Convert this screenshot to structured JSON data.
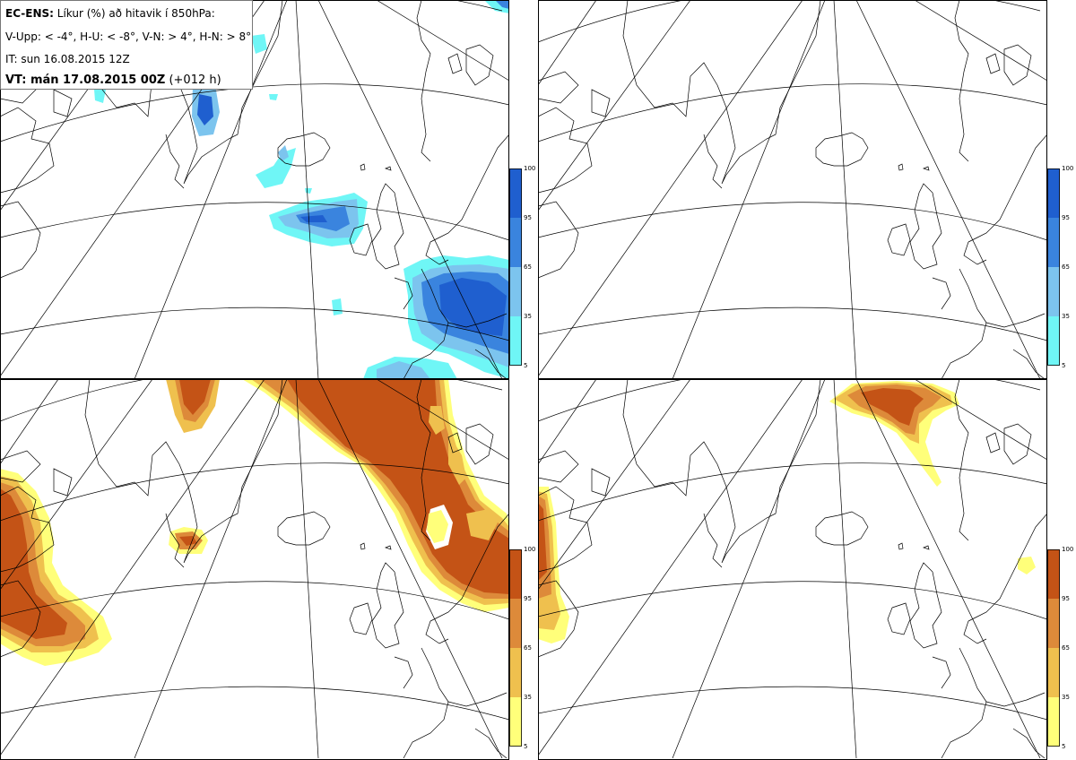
{
  "header": {
    "model": "EC-ENS:",
    "title": "Líkur (%) að hitavik í 850hPa:",
    "legend_line": "V-Upp: < -4°, H-U: < -8°, V-N: > 4°, H-N: > 8°",
    "init_time": "IT: sun 16.08.2015 12Z",
    "valid_label": "VT: mán 17.08.2015 00Z",
    "valid_suffix": "(+012 h)"
  },
  "colorbars": {
    "cold": {
      "ticks": [
        "100",
        "95",
        "65",
        "35",
        "5"
      ],
      "colors": [
        "#1f5fcf",
        "#3a84de",
        "#7cc4ee",
        "#6ff6f6"
      ]
    },
    "warm": {
      "ticks": [
        "100",
        "95",
        "65",
        "35",
        "5"
      ],
      "colors": [
        "#c45316",
        "#dd8a3a",
        "#efc04e",
        "#ffff7a"
      ]
    }
  },
  "panels": [
    {
      "id": "cold-moderate",
      "scale": "cold"
    },
    {
      "id": "cold-strong",
      "scale": "cold"
    },
    {
      "id": "warm-moderate",
      "scale": "warm"
    },
    {
      "id": "warm-strong",
      "scale": "warm"
    }
  ]
}
